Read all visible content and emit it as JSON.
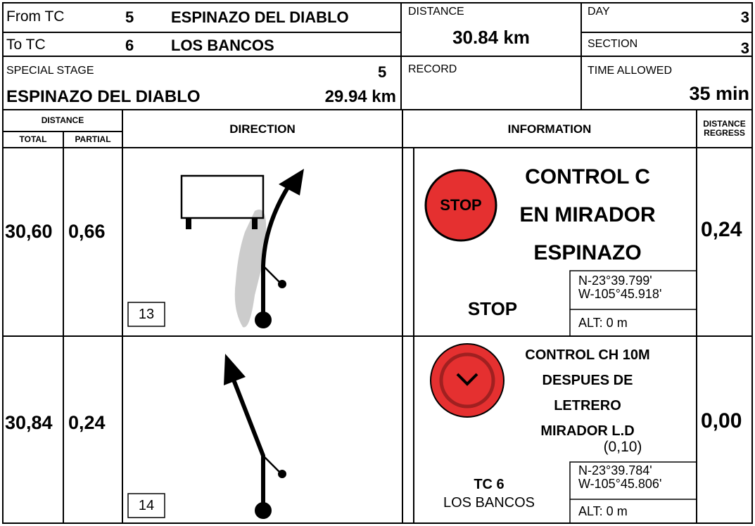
{
  "header": {
    "from_tc": {
      "label": "From TC",
      "number": 5,
      "name": "ESPINAZO DEL DIABLO"
    },
    "to_tc": {
      "label": "To TC",
      "number": 6,
      "name": "LOS BANCOS"
    },
    "distance": {
      "label": "DISTANCE",
      "value": "30.84 km"
    },
    "day": {
      "label": "DAY",
      "value": 3
    },
    "section": {
      "label": "SECTION",
      "value": 3
    },
    "special_stage": {
      "label": "SPECIAL STAGE",
      "number": 5,
      "name": "ESPINAZO DEL DIABLO",
      "length": "29.94 km"
    },
    "record": {
      "label": "RECORD"
    },
    "time_allowed": {
      "label": "TIME ALLOWED",
      "value": "35 min"
    }
  },
  "table": {
    "columns": {
      "distance": "DISTANCE",
      "total": "TOTAL",
      "partial": "PARTIAL",
      "direction": "DIRECTION",
      "information": "INFORMATION",
      "distance_regress": "DISTANCE REGRESS"
    },
    "rows": [
      {
        "total": "30,60",
        "partial": "0,66",
        "box": "13",
        "icon": "STOP",
        "info": [
          "CONTROL C",
          "EN MIRADOR",
          "ESPINAZO"
        ],
        "note": "STOP",
        "coords": [
          "N-23°39.799'",
          "W-105°45.918'"
        ],
        "alt": "ALT: 0 m",
        "regress": "0,24"
      },
      {
        "total": "30,84",
        "partial": "0,24",
        "box": "14",
        "info": [
          "CONTROL CH 10M",
          "DESPUES DE",
          "LETRERO",
          "MIRADOR L.D",
          "(0,10)"
        ],
        "note_title": "TC 6",
        "note": "LOS BANCOS",
        "coords": [
          "N-23°39.784'",
          "W-105°45.806'"
        ],
        "alt": "ALT: 0 m",
        "regress": "0,00"
      }
    ]
  }
}
